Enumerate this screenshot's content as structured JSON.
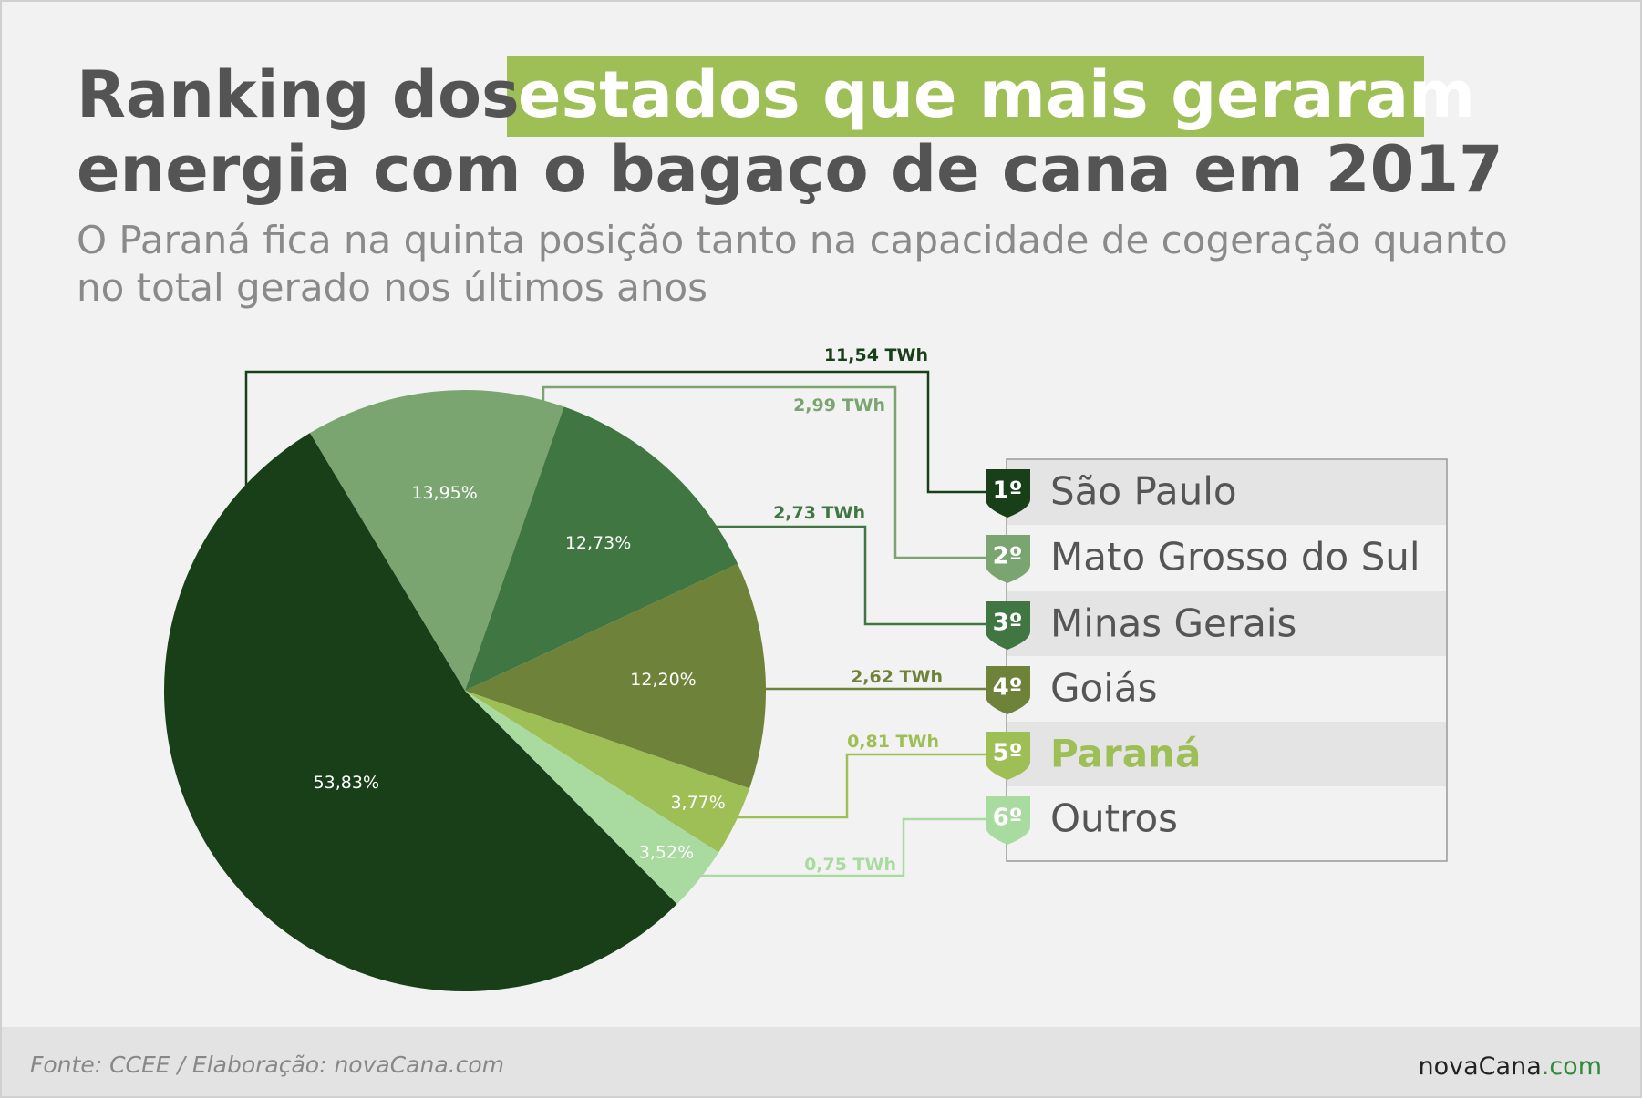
{
  "chart_data": {
    "type": "pie",
    "title": {
      "lead": "Ranking dos",
      "highlight": "estados que mais geraram",
      "rest": "energia com o bagaço de cana em 2017"
    },
    "subtitle": [
      "O Paraná fica na quinta posição tanto na capacidade de cogeração quanto",
      "no total gerado nos últimos anos"
    ],
    "categories": [
      "São Paulo",
      "Mato Grosso do Sul",
      "Minas Gerais",
      "Goiás",
      "Paraná",
      "Outros"
    ],
    "ranks": [
      "1º",
      "2º",
      "3º",
      "4º",
      "5º",
      "6º"
    ],
    "values": [
      53.83,
      13.95,
      12.73,
      12.2,
      3.77,
      3.52
    ],
    "value_labels": [
      "53,83%",
      "13,95%",
      "12,73%",
      "12,20%",
      "3,77%",
      "3,52%"
    ],
    "energy_twh": [
      11.54,
      2.99,
      2.73,
      2.62,
      0.81,
      0.75
    ],
    "energy_labels": [
      "11,54 TWh",
      "2,99 TWh",
      "2,73 TWh",
      "2,62 TWh",
      "0,81 TWh",
      "0,75 TWh"
    ],
    "colors": [
      "#193f19",
      "#7aa571",
      "#3f7641",
      "#6f8239",
      "#9dbf55",
      "#a9dba0"
    ],
    "source": "Fonte: CCEE / Elaboração: novaCana.com"
  },
  "logo": {
    "name": "novaCana",
    "suffix": ".com"
  }
}
